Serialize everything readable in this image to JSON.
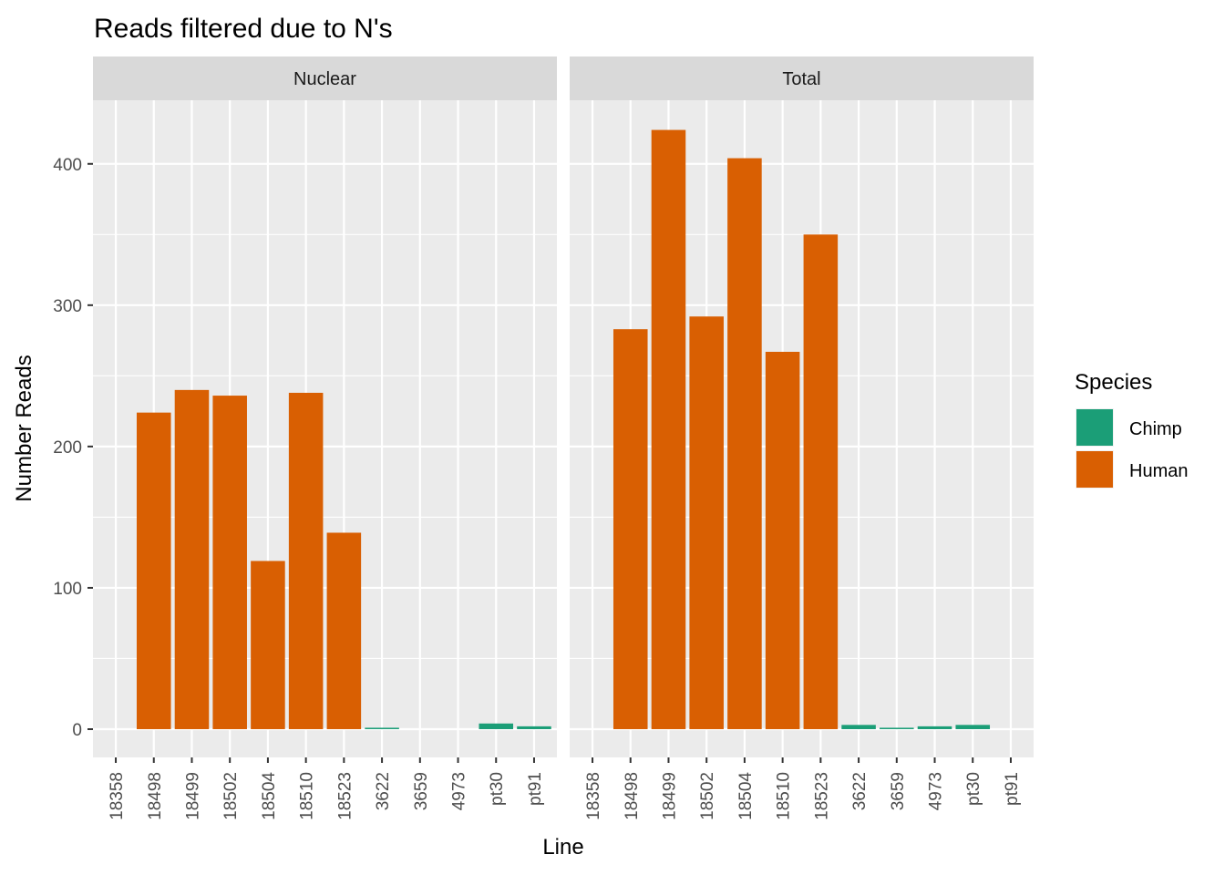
{
  "chart_data": {
    "type": "bar",
    "title": "Reads filtered due to N's",
    "xlabel": "Line",
    "ylabel": "Number Reads",
    "ylim": [
      -20,
      445
    ],
    "yticks": [
      0,
      100,
      200,
      300,
      400
    ],
    "grid": true,
    "legend": {
      "title": "Species",
      "position": "right",
      "entries": [
        {
          "label": "Chimp",
          "color": "#1b9e77"
        },
        {
          "label": "Human",
          "color": "#d95f02"
        }
      ]
    },
    "categories": [
      "18358",
      "18498",
      "18499",
      "18502",
      "18504",
      "18510",
      "18523",
      "3622",
      "3659",
      "4973",
      "pt30",
      "pt91"
    ],
    "species": [
      "Human",
      "Human",
      "Human",
      "Human",
      "Human",
      "Human",
      "Human",
      "Chimp",
      "Chimp",
      "Chimp",
      "Chimp",
      "Chimp"
    ],
    "panels": [
      {
        "name": "Nuclear",
        "values": [
          0,
          224,
          240,
          236,
          119,
          238,
          139,
          1,
          0,
          0,
          4,
          2
        ]
      },
      {
        "name": "Total",
        "values": [
          0,
          283,
          424,
          292,
          404,
          267,
          350,
          3,
          1,
          2,
          3,
          0
        ]
      }
    ]
  }
}
